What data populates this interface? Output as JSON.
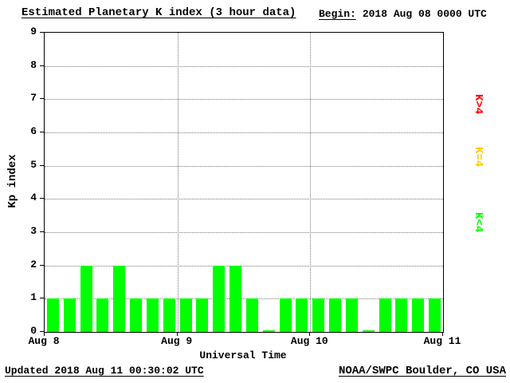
{
  "header": {
    "title": "Estimated Planetary K index (3 hour data)",
    "begin_label": "Begin:",
    "begin_value": "2018 Aug 08 0000 UTC"
  },
  "footer": {
    "updated": "Updated 2018 Aug 11 00:30:02 UTC",
    "credit": "NOAA/SWPC Boulder, CO USA"
  },
  "legend": [
    {
      "label": "K>4",
      "color": "#ff0000"
    },
    {
      "label": "K=4",
      "color": "#ffc800"
    },
    {
      "label": "K<4",
      "color": "#00ff00"
    }
  ],
  "colors": {
    "bar_green": "#00ff00",
    "bar_yellow": "#ffc800",
    "bar_red": "#ff0000",
    "background": "#ffffff",
    "text": "#000000"
  },
  "chart_data": {
    "type": "bar",
    "title": "Estimated Planetary K index (3 hour data)",
    "xlabel": "Universal Time",
    "ylabel": "Kp index",
    "ylim": [
      0,
      9
    ],
    "yticks": [
      0,
      1,
      2,
      3,
      4,
      5,
      6,
      7,
      8,
      9
    ],
    "xticks": [
      "Aug 8",
      "Aug 9",
      "Aug 10",
      "Aug 11"
    ],
    "interval_hours": 3,
    "begin": "2018 Aug 08 0000 UTC",
    "grid": "dotted",
    "legend_position": "right",
    "color_rule": "green K<4, yellow K=4, red K>4",
    "values": [
      1,
      1,
      2,
      1,
      2,
      1,
      1,
      1,
      1,
      1,
      2,
      2,
      1,
      0,
      1,
      1,
      1,
      1,
      1,
      0,
      1,
      1,
      1,
      1
    ]
  }
}
